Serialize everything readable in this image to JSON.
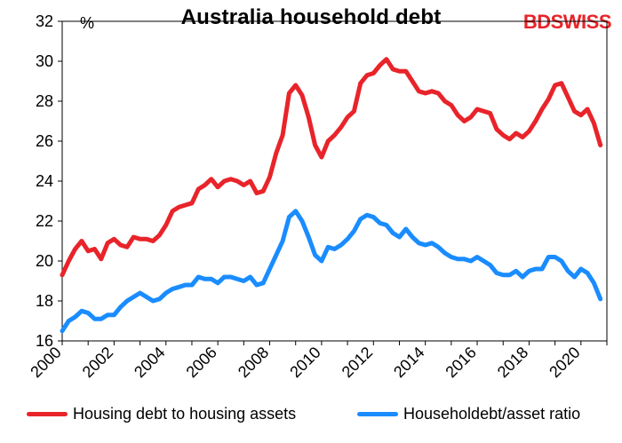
{
  "title": "Australia  household debt",
  "unit": "%",
  "brand": "BDSWISS",
  "chart_data": {
    "type": "line",
    "title": "Australia household debt",
    "ylabel": "%",
    "xlim": [
      2000,
      2021
    ],
    "ylim": [
      16,
      32
    ],
    "y_ticks": [
      16,
      18,
      20,
      22,
      24,
      26,
      28,
      30,
      32
    ],
    "x_ticks": [
      2000,
      2002,
      2004,
      2006,
      2008,
      2010,
      2012,
      2014,
      2016,
      2018,
      2020
    ],
    "legend_position": "bottom",
    "x": [
      2000.0,
      2000.25,
      2000.5,
      2000.75,
      2001.0,
      2001.25,
      2001.5,
      2001.75,
      2002.0,
      2002.25,
      2002.5,
      2002.75,
      2003.0,
      2003.25,
      2003.5,
      2003.75,
      2004.0,
      2004.25,
      2004.5,
      2004.75,
      2005.0,
      2005.25,
      2005.5,
      2005.75,
      2006.0,
      2006.25,
      2006.5,
      2006.75,
      2007.0,
      2007.25,
      2007.5,
      2007.75,
      2008.0,
      2008.25,
      2008.5,
      2008.75,
      2009.0,
      2009.25,
      2009.5,
      2009.75,
      2010.0,
      2010.25,
      2010.5,
      2010.75,
      2011.0,
      2011.25,
      2011.5,
      2011.75,
      2012.0,
      2012.25,
      2012.5,
      2012.75,
      2013.0,
      2013.25,
      2013.5,
      2013.75,
      2014.0,
      2014.25,
      2014.5,
      2014.75,
      2015.0,
      2015.25,
      2015.5,
      2015.75,
      2016.0,
      2016.25,
      2016.5,
      2016.75,
      2017.0,
      2017.25,
      2017.5,
      2017.75,
      2018.0,
      2018.25,
      2018.5,
      2018.75,
      2019.0,
      2019.25,
      2019.5,
      2019.75,
      2020.0,
      2020.25,
      2020.5,
      2020.75
    ],
    "series": [
      {
        "name": "Housing debt to housing assets",
        "color": "#e8242a",
        "values": [
          19.3,
          20.0,
          20.6,
          21.0,
          20.5,
          20.6,
          20.1,
          20.9,
          21.1,
          20.8,
          20.7,
          21.2,
          21.1,
          21.1,
          21.0,
          21.3,
          21.8,
          22.5,
          22.7,
          22.8,
          22.9,
          23.6,
          23.8,
          24.1,
          23.7,
          24.0,
          24.1,
          24.0,
          23.8,
          24.0,
          23.4,
          23.5,
          24.2,
          25.4,
          26.3,
          28.4,
          28.8,
          28.3,
          27.2,
          25.8,
          25.2,
          26.0,
          26.3,
          26.7,
          27.2,
          27.5,
          28.9,
          29.3,
          29.4,
          29.8,
          30.1,
          29.6,
          29.5,
          29.5,
          29.0,
          28.5,
          28.4,
          28.5,
          28.4,
          28.0,
          27.8,
          27.3,
          27.0,
          27.2,
          27.6,
          27.5,
          27.4,
          26.6,
          26.3,
          26.1,
          26.4,
          26.2,
          26.5,
          27.0,
          27.6,
          28.1,
          28.8,
          28.9,
          28.2,
          27.5,
          27.3,
          27.6,
          26.9,
          25.8
        ]
      },
      {
        "name": "Householdebt/asset ratio",
        "color": "#1a8cff",
        "values": [
          16.5,
          17.0,
          17.2,
          17.5,
          17.4,
          17.1,
          17.1,
          17.3,
          17.3,
          17.7,
          18.0,
          18.2,
          18.4,
          18.2,
          18.0,
          18.1,
          18.4,
          18.6,
          18.7,
          18.8,
          18.8,
          19.2,
          19.1,
          19.1,
          18.9,
          19.2,
          19.2,
          19.1,
          19.0,
          19.2,
          18.8,
          18.9,
          19.6,
          20.3,
          21.0,
          22.2,
          22.5,
          22.0,
          21.2,
          20.3,
          20.0,
          20.7,
          20.6,
          20.8,
          21.1,
          21.5,
          22.1,
          22.3,
          22.2,
          21.9,
          21.8,
          21.4,
          21.2,
          21.6,
          21.2,
          20.9,
          20.8,
          20.9,
          20.7,
          20.4,
          20.2,
          20.1,
          20.1,
          20.0,
          20.2,
          20.0,
          19.8,
          19.4,
          19.3,
          19.3,
          19.5,
          19.2,
          19.5,
          19.6,
          19.6,
          20.2,
          20.2,
          20.0,
          19.5,
          19.2,
          19.6,
          19.4,
          18.9,
          18.1
        ]
      }
    ]
  }
}
